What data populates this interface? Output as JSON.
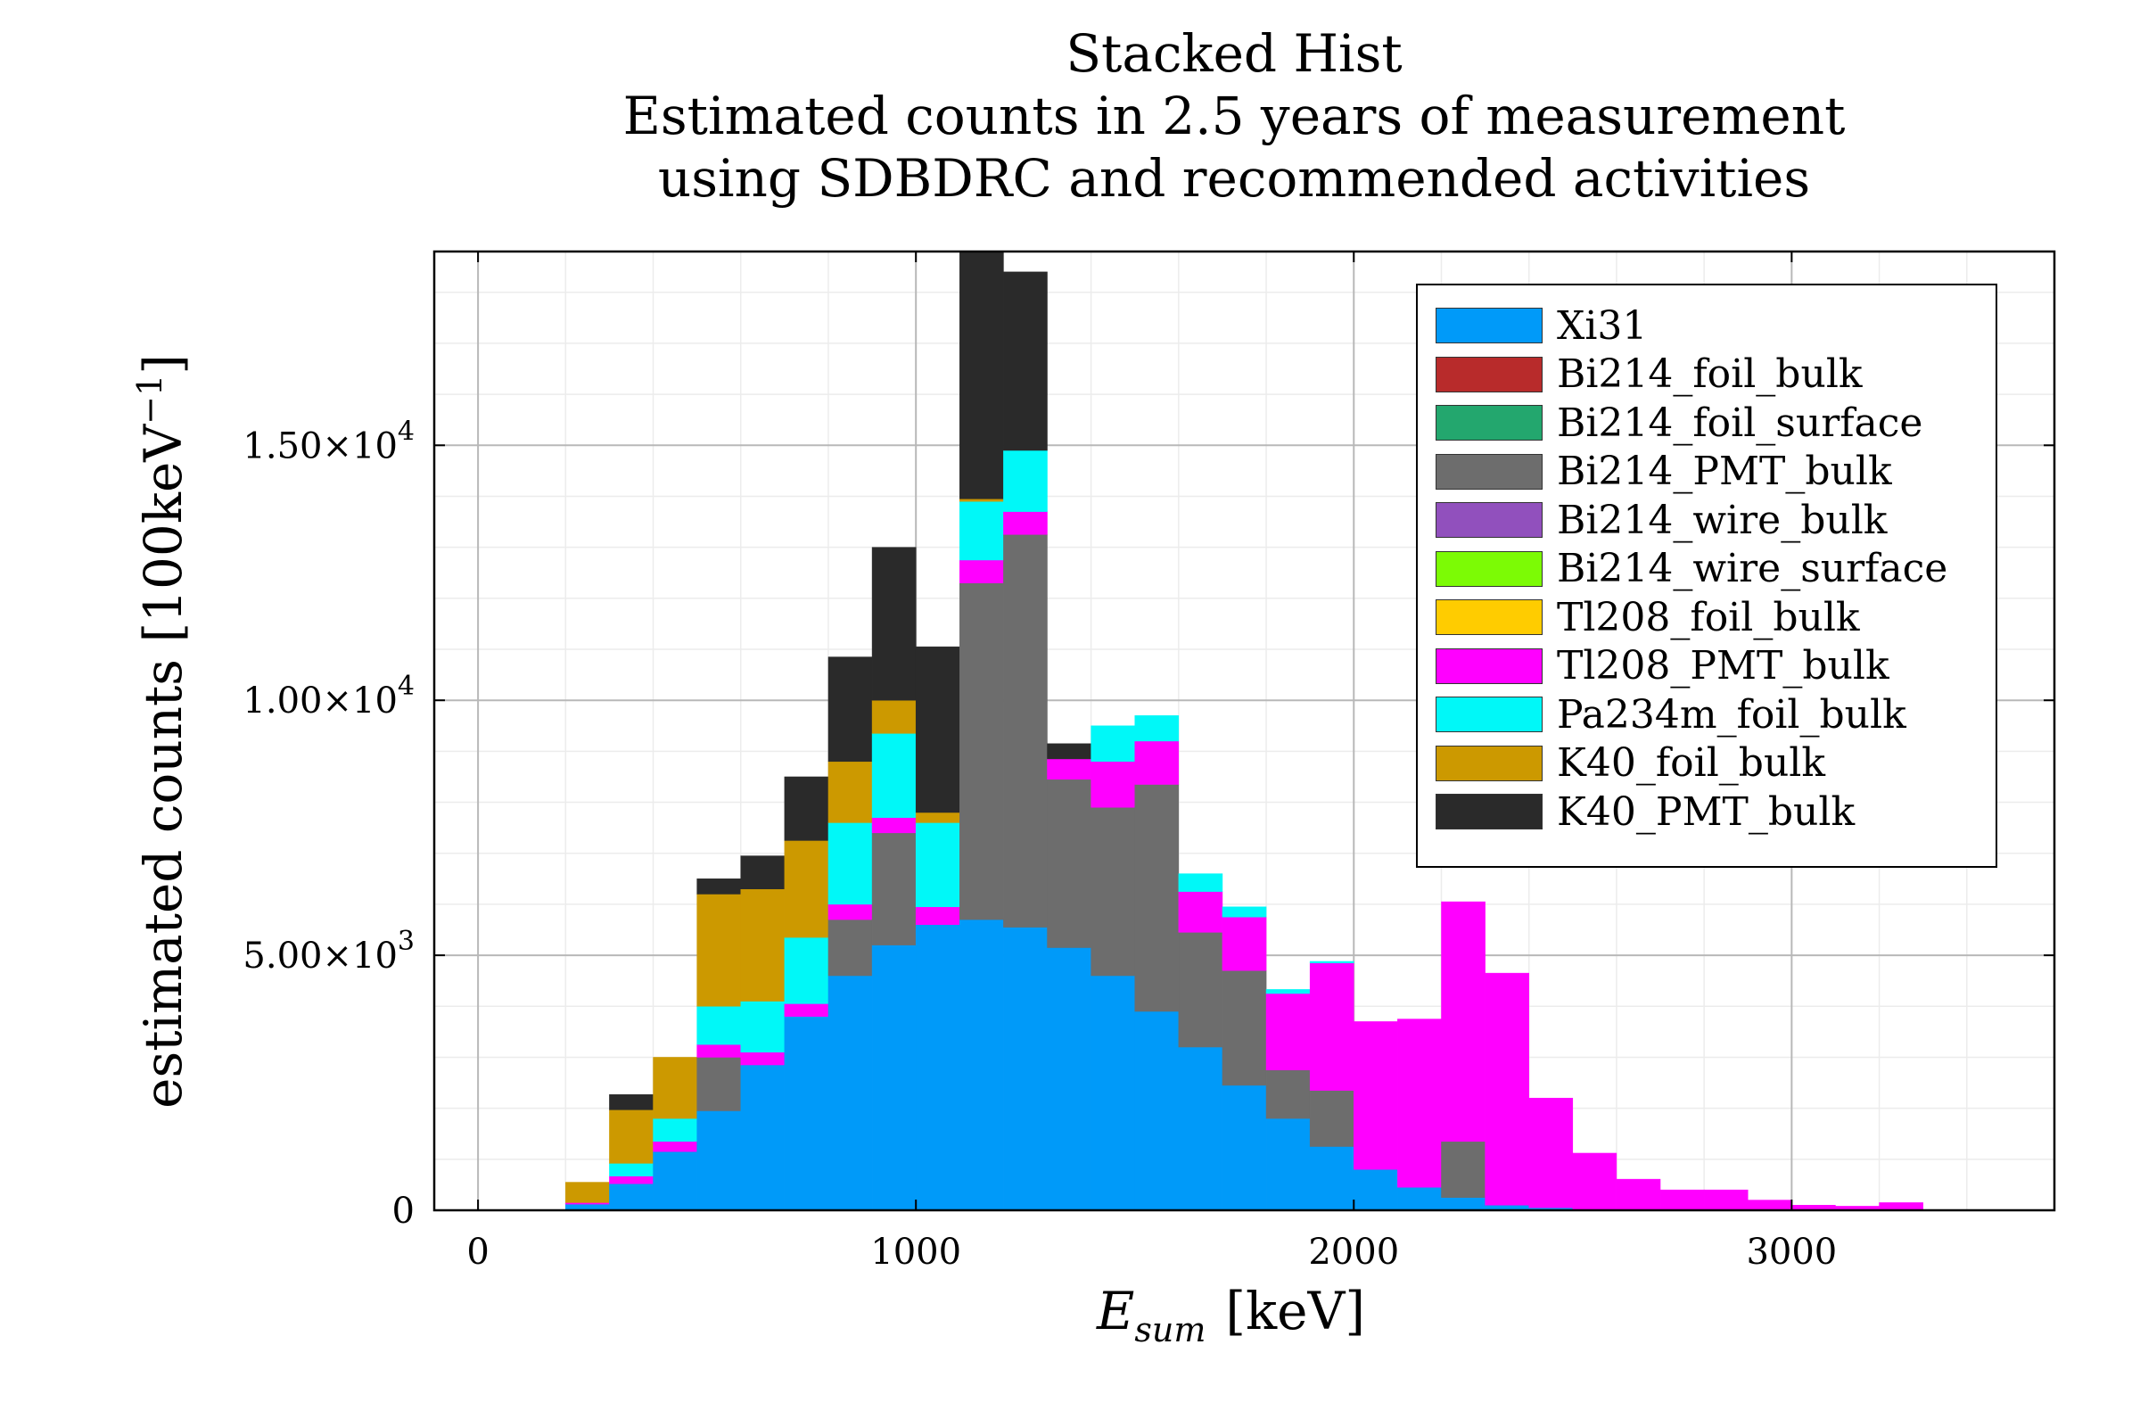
{
  "chart_data": {
    "type": "bar",
    "stacked": true,
    "title_lines": [
      "Stacked Hist",
      "Estimated counts in 2.5 years of measurement",
      " using SDBDRC and recommended activities"
    ],
    "xlabel": "E_sum [keV]",
    "xlabel_main": "E",
    "xlabel_sub": "sum",
    "xlabel_unit": "[keV]",
    "ylabel": "estimated counts [100keV^-1]",
    "ylabel_main": "estimated counts [100keV",
    "ylabel_sup": "−1",
    "ylabel_close": "]",
    "xlim": [
      -100,
      3600
    ],
    "ylim": [
      0,
      18800
    ],
    "x_ticks": [
      0,
      1000,
      2000,
      3000
    ],
    "x_tick_labels": [
      "0",
      "1000",
      "2000",
      "3000"
    ],
    "y_ticks": [
      0,
      5000,
      10000,
      15000
    ],
    "y_tick_labels": [
      {
        "mant": "0",
        "exp": ""
      },
      {
        "mant": "5.00×10",
        "exp": "3"
      },
      {
        "mant": "1.00×10",
        "exp": "4"
      },
      {
        "mant": "1.50×10",
        "exp": "4"
      }
    ],
    "grid": true,
    "legend_position": "top-right",
    "bin_width": 100,
    "bin_starts": [
      200,
      300,
      400,
      500,
      600,
      700,
      800,
      900,
      1000,
      1100,
      1200,
      1300,
      1400,
      1500,
      1600,
      1700,
      1800,
      1900,
      2000,
      2100,
      2200,
      2300,
      2400,
      2500,
      2600,
      2700,
      2800,
      2900,
      3000,
      3100,
      3200,
      3300,
      3400
    ],
    "series": [
      {
        "name": "Xi31",
        "color": "#009af9",
        "values": [
          120,
          520,
          1150,
          1950,
          2850,
          3800,
          4600,
          5200,
          5600,
          5700,
          5550,
          5150,
          4600,
          3900,
          3200,
          2450,
          1800,
          1250,
          800,
          450,
          250,
          100,
          50,
          20,
          10,
          0,
          0,
          0,
          0,
          0,
          0,
          0,
          0
        ]
      },
      {
        "name": "Bi214_foil_bulk",
        "color": "#b82b2b",
        "values": [
          0,
          0,
          0,
          0,
          0,
          0,
          0,
          0,
          0,
          0,
          0,
          0,
          0,
          0,
          0,
          0,
          0,
          0,
          0,
          0,
          0,
          0,
          0,
          0,
          0,
          0,
          0,
          0,
          0,
          0,
          0,
          0,
          0
        ]
      },
      {
        "name": "Bi214_foil_surface",
        "color": "#23a76e",
        "values": [
          0,
          0,
          0,
          0,
          0,
          0,
          0,
          0,
          0,
          0,
          0,
          0,
          0,
          0,
          0,
          0,
          0,
          0,
          0,
          0,
          0,
          0,
          0,
          0,
          0,
          0,
          0,
          0,
          0,
          0,
          0,
          0,
          0
        ]
      },
      {
        "name": "Bi214_PMT_bulk",
        "color": "#6d6d6d",
        "values": [
          0,
          0,
          0,
          1050,
          0,
          0,
          1100,
          2200,
          0,
          6600,
          7700,
          3300,
          3300,
          4450,
          2250,
          2250,
          950,
          1100,
          0,
          0,
          1100,
          0,
          0,
          0,
          0,
          0,
          0,
          0,
          0,
          0,
          0,
          0,
          0
        ]
      },
      {
        "name": "Bi214_wire_bulk",
        "color": "#9150bd",
        "values": [
          0,
          0,
          0,
          0,
          0,
          0,
          0,
          0,
          0,
          0,
          0,
          0,
          0,
          0,
          0,
          0,
          0,
          0,
          0,
          0,
          0,
          0,
          0,
          0,
          0,
          0,
          0,
          0,
          0,
          0,
          0,
          0,
          0
        ]
      },
      {
        "name": "Bi214_wire_surface",
        "color": "#7cfb05",
        "values": [
          0,
          0,
          0,
          0,
          0,
          0,
          0,
          0,
          0,
          0,
          0,
          0,
          0,
          0,
          0,
          0,
          0,
          0,
          0,
          0,
          0,
          0,
          0,
          0,
          0,
          0,
          0,
          0,
          0,
          0,
          0,
          0,
          0
        ]
      },
      {
        "name": "Tl208_foil_bulk",
        "color": "#ffcc00",
        "values": [
          0,
          0,
          0,
          0,
          0,
          0,
          0,
          0,
          0,
          0,
          0,
          0,
          0,
          0,
          0,
          0,
          0,
          0,
          0,
          0,
          0,
          0,
          0,
          0,
          0,
          0,
          0,
          0,
          0,
          0,
          0,
          0,
          0
        ]
      },
      {
        "name": "Tl208_PMT_bulk",
        "color": "#ff00ff",
        "values": [
          30,
          150,
          200,
          250,
          250,
          250,
          300,
          300,
          350,
          450,
          450,
          400,
          900,
          850,
          800,
          1050,
          1500,
          2500,
          2900,
          3300,
          4700,
          4550,
          2150,
          1100,
          600,
          400,
          400,
          200,
          100,
          80,
          150,
          0,
          0
        ]
      },
      {
        "name": "Pa234m_foil_bulk",
        "color": "#00f8f8",
        "values": [
          0,
          250,
          450,
          750,
          1000,
          1300,
          1600,
          1650,
          1650,
          1150,
          1200,
          0,
          700,
          500,
          350,
          200,
          80,
          30,
          0,
          0,
          0,
          0,
          0,
          0,
          0,
          0,
          0,
          0,
          0,
          0,
          0,
          0,
          0
        ]
      },
      {
        "name": "K40_foil_bulk",
        "color": "#cc9900",
        "values": [
          400,
          1050,
          1200,
          2200,
          2200,
          1900,
          1200,
          650,
          200,
          50,
          0,
          0,
          0,
          0,
          0,
          0,
          0,
          0,
          0,
          0,
          0,
          0,
          0,
          0,
          0,
          0,
          0,
          0,
          0,
          0,
          0,
          0,
          0
        ]
      },
      {
        "name": "K40_PMT_bulk",
        "color": "#2a2a2a",
        "values": [
          0,
          300,
          0,
          300,
          650,
          1250,
          2050,
          3000,
          3250,
          5100,
          3500,
          300,
          0,
          0,
          0,
          0,
          0,
          0,
          0,
          0,
          0,
          0,
          0,
          0,
          0,
          0,
          0,
          0,
          0,
          0,
          0,
          0,
          0
        ]
      }
    ]
  }
}
